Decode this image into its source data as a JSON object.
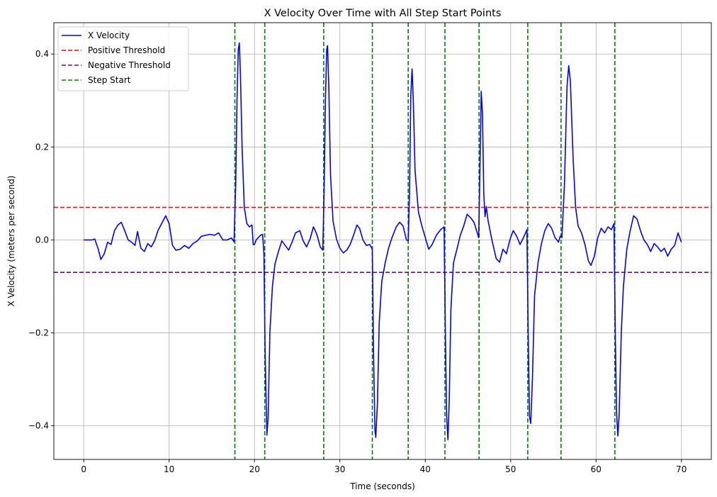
{
  "chart_data": {
    "type": "line",
    "title": "X Velocity Over Time with All Step Start Points",
    "xlabel": "Time (seconds)",
    "ylabel": "X Velocity (meters per second)",
    "xlim": [
      -3.5,
      73.5
    ],
    "ylim": [
      -0.4725,
      0.4675
    ],
    "x_ticks": [
      0,
      10,
      20,
      30,
      40,
      50,
      60,
      70
    ],
    "x_tick_labels": [
      "0",
      "10",
      "20",
      "30",
      "40",
      "50",
      "60",
      "70"
    ],
    "y_ticks": [
      -0.4,
      -0.2,
      0.0,
      0.2,
      0.4
    ],
    "y_tick_labels": [
      "−0.4",
      "−0.2",
      "0.0",
      "0.2",
      "0.4"
    ],
    "grid": true,
    "legend_position": "top-left",
    "series": [
      {
        "name": "X Velocity",
        "color": "#0000ff",
        "style": "solid",
        "points": [
          [
            0,
            0
          ],
          [
            1,
            0
          ],
          [
            1.3,
            0.002
          ],
          [
            1.7,
            -0.02
          ],
          [
            2.0,
            -0.042
          ],
          [
            2.4,
            -0.03
          ],
          [
            2.8,
            -0.005
          ],
          [
            3.2,
            -0.01
          ],
          [
            3.6,
            0.02
          ],
          [
            4.0,
            0.032
          ],
          [
            4.4,
            0.038
          ],
          [
            4.8,
            0.02
          ],
          [
            5.2,
            0.0
          ],
          [
            5.6,
            -0.005
          ],
          [
            6.0,
            -0.012
          ],
          [
            6.3,
            0.018
          ],
          [
            6.7,
            -0.018
          ],
          [
            7.1,
            -0.025
          ],
          [
            7.5,
            -0.008
          ],
          [
            7.9,
            -0.015
          ],
          [
            8.3,
            -0.002
          ],
          [
            8.7,
            0.02
          ],
          [
            9.2,
            0.038
          ],
          [
            9.6,
            0.052
          ],
          [
            10.0,
            0.035
          ],
          [
            10.4,
            -0.012
          ],
          [
            10.8,
            -0.022
          ],
          [
            11.3,
            -0.02
          ],
          [
            11.8,
            -0.012
          ],
          [
            12.3,
            -0.018
          ],
          [
            12.8,
            -0.008
          ],
          [
            13.3,
            -0.002
          ],
          [
            13.8,
            0.008
          ],
          [
            14.3,
            0.01
          ],
          [
            14.8,
            0.012
          ],
          [
            15.3,
            0.01
          ],
          [
            15.8,
            0.015
          ],
          [
            16.3,
            0.0
          ],
          [
            16.8,
            0.0
          ],
          [
            17.3,
            0.004
          ],
          [
            17.6,
            -0.004
          ],
          [
            17.8,
            0.12
          ],
          [
            17.95,
            0.3
          ],
          [
            18.1,
            0.41
          ],
          [
            18.22,
            0.424
          ],
          [
            18.35,
            0.36
          ],
          [
            18.55,
            0.2
          ],
          [
            18.8,
            0.07
          ],
          [
            19.1,
            0.035
          ],
          [
            19.4,
            0.028
          ],
          [
            19.7,
            0.032
          ],
          [
            19.85,
            -0.01
          ],
          [
            20.0,
            -0.01
          ],
          [
            20.2,
            0.0
          ],
          [
            20.45,
            0.005
          ],
          [
            20.7,
            0.01
          ],
          [
            20.95,
            0.012
          ],
          [
            21.1,
            -0.03
          ],
          [
            21.25,
            -0.25
          ],
          [
            21.45,
            -0.42
          ],
          [
            21.6,
            -0.38
          ],
          [
            21.8,
            -0.2
          ],
          [
            22.1,
            -0.1
          ],
          [
            22.4,
            -0.052
          ],
          [
            22.8,
            -0.025
          ],
          [
            23.2,
            -0.002
          ],
          [
            23.6,
            -0.012
          ],
          [
            24.0,
            -0.022
          ],
          [
            24.4,
            -0.005
          ],
          [
            24.8,
            0.015
          ],
          [
            25.3,
            0.02
          ],
          [
            25.7,
            -0.002
          ],
          [
            26.1,
            -0.015
          ],
          [
            26.5,
            0.002
          ],
          [
            26.9,
            0.028
          ],
          [
            27.3,
            0.012
          ],
          [
            27.7,
            -0.015
          ],
          [
            28.0,
            -0.022
          ],
          [
            28.15,
            0.1
          ],
          [
            28.3,
            0.3
          ],
          [
            28.45,
            0.41
          ],
          [
            28.55,
            0.418
          ],
          [
            28.7,
            0.33
          ],
          [
            28.9,
            0.14
          ],
          [
            29.2,
            0.04
          ],
          [
            29.6,
            0.002
          ],
          [
            30.0,
            -0.018
          ],
          [
            30.4,
            -0.028
          ],
          [
            30.8,
            -0.022
          ],
          [
            31.2,
            -0.01
          ],
          [
            31.6,
            0.01
          ],
          [
            32.0,
            0.032
          ],
          [
            32.3,
            0.025
          ],
          [
            32.7,
            0.0
          ],
          [
            33.1,
            -0.012
          ],
          [
            33.5,
            -0.01
          ],
          [
            33.8,
            -0.02
          ],
          [
            33.95,
            -0.25
          ],
          [
            34.1,
            -0.41
          ],
          [
            34.2,
            -0.425
          ],
          [
            34.4,
            -0.35
          ],
          [
            34.6,
            -0.18
          ],
          [
            34.9,
            -0.09
          ],
          [
            35.3,
            -0.05
          ],
          [
            35.7,
            -0.018
          ],
          [
            36.1,
            0.005
          ],
          [
            36.6,
            0.028
          ],
          [
            37.0,
            0.038
          ],
          [
            37.4,
            0.03
          ],
          [
            37.8,
            0.0
          ],
          [
            38.0,
            -0.002
          ],
          [
            38.15,
            0.1
          ],
          [
            38.3,
            0.31
          ],
          [
            38.45,
            0.368
          ],
          [
            38.6,
            0.3
          ],
          [
            38.8,
            0.15
          ],
          [
            39.2,
            0.06
          ],
          [
            39.6,
            0.03
          ],
          [
            40.0,
            0.005
          ],
          [
            40.4,
            -0.02
          ],
          [
            40.8,
            -0.01
          ],
          [
            41.3,
            0.01
          ],
          [
            41.8,
            0.022
          ],
          [
            42.2,
            0.028
          ],
          [
            42.35,
            -0.2
          ],
          [
            42.5,
            -0.38
          ],
          [
            42.65,
            -0.43
          ],
          [
            42.8,
            -0.35
          ],
          [
            43.0,
            -0.15
          ],
          [
            43.3,
            -0.05
          ],
          [
            43.7,
            -0.02
          ],
          [
            44.1,
            0.01
          ],
          [
            44.5,
            0.03
          ],
          [
            44.9,
            0.055
          ],
          [
            45.3,
            0.048
          ],
          [
            45.7,
            0.038
          ],
          [
            46.0,
            0.02
          ],
          [
            46.25,
            0.005
          ],
          [
            46.4,
            0.15
          ],
          [
            46.55,
            0.32
          ],
          [
            46.7,
            0.27
          ],
          [
            46.85,
            0.1
          ],
          [
            47.0,
            0.05
          ],
          [
            47.15,
            0.072
          ],
          [
            47.35,
            0.042
          ],
          [
            47.8,
            0.0
          ],
          [
            48.3,
            -0.04
          ],
          [
            48.7,
            -0.048
          ],
          [
            49.1,
            -0.02
          ],
          [
            49.5,
            -0.03
          ],
          [
            49.9,
            0.0
          ],
          [
            50.3,
            0.02
          ],
          [
            50.7,
            0.008
          ],
          [
            51.1,
            -0.01
          ],
          [
            51.5,
            0.005
          ],
          [
            51.9,
            0.022
          ],
          [
            52.05,
            -0.2
          ],
          [
            52.2,
            -0.38
          ],
          [
            52.35,
            -0.395
          ],
          [
            52.55,
            -0.3
          ],
          [
            52.8,
            -0.12
          ],
          [
            53.2,
            -0.05
          ],
          [
            53.6,
            -0.008
          ],
          [
            54.0,
            0.02
          ],
          [
            54.4,
            0.035
          ],
          [
            54.8,
            0.025
          ],
          [
            55.2,
            0.005
          ],
          [
            55.6,
            -0.005
          ],
          [
            55.8,
            0.008
          ],
          [
            56.0,
            0.005
          ],
          [
            56.3,
            0.12
          ],
          [
            56.6,
            0.33
          ],
          [
            56.8,
            0.375
          ],
          [
            57.0,
            0.34
          ],
          [
            57.3,
            0.18
          ],
          [
            57.6,
            0.07
          ],
          [
            57.9,
            0.03
          ],
          [
            58.3,
            0.015
          ],
          [
            58.7,
            -0.01
          ],
          [
            59.1,
            -0.045
          ],
          [
            59.4,
            -0.055
          ],
          [
            59.8,
            -0.035
          ],
          [
            60.2,
            0.005
          ],
          [
            60.6,
            0.025
          ],
          [
            61.0,
            0.015
          ],
          [
            61.4,
            0.028
          ],
          [
            61.8,
            0.022
          ],
          [
            62.1,
            0.035
          ],
          [
            62.25,
            -0.2
          ],
          [
            62.4,
            -0.37
          ],
          [
            62.55,
            -0.422
          ],
          [
            62.7,
            -0.38
          ],
          [
            62.95,
            -0.2
          ],
          [
            63.2,
            -0.1
          ],
          [
            63.6,
            -0.02
          ],
          [
            64.0,
            0.02
          ],
          [
            64.4,
            0.052
          ],
          [
            64.8,
            0.045
          ],
          [
            65.2,
            0.02
          ],
          [
            65.6,
            0.0
          ],
          [
            66.0,
            -0.01
          ],
          [
            66.4,
            -0.025
          ],
          [
            66.8,
            -0.008
          ],
          [
            67.2,
            -0.015
          ],
          [
            67.6,
            -0.025
          ],
          [
            68.0,
            -0.018
          ],
          [
            68.4,
            -0.035
          ],
          [
            68.8,
            -0.02
          ],
          [
            69.2,
            -0.012
          ],
          [
            69.6,
            0.015
          ],
          [
            70.0,
            -0.005
          ]
        ]
      },
      {
        "name": "Positive Threshold",
        "color": "#ff0000",
        "style": "dashed",
        "y": 0.07
      },
      {
        "name": "Negative Threshold",
        "color": "#800080",
        "style": "dashed",
        "y": -0.07
      },
      {
        "name": "Step Start",
        "color": "#008000",
        "style": "dashed",
        "x": [
          17.7,
          21.2,
          28.1,
          33.8,
          38.0,
          42.3,
          46.3,
          52.0,
          55.9,
          62.2
        ]
      }
    ]
  }
}
